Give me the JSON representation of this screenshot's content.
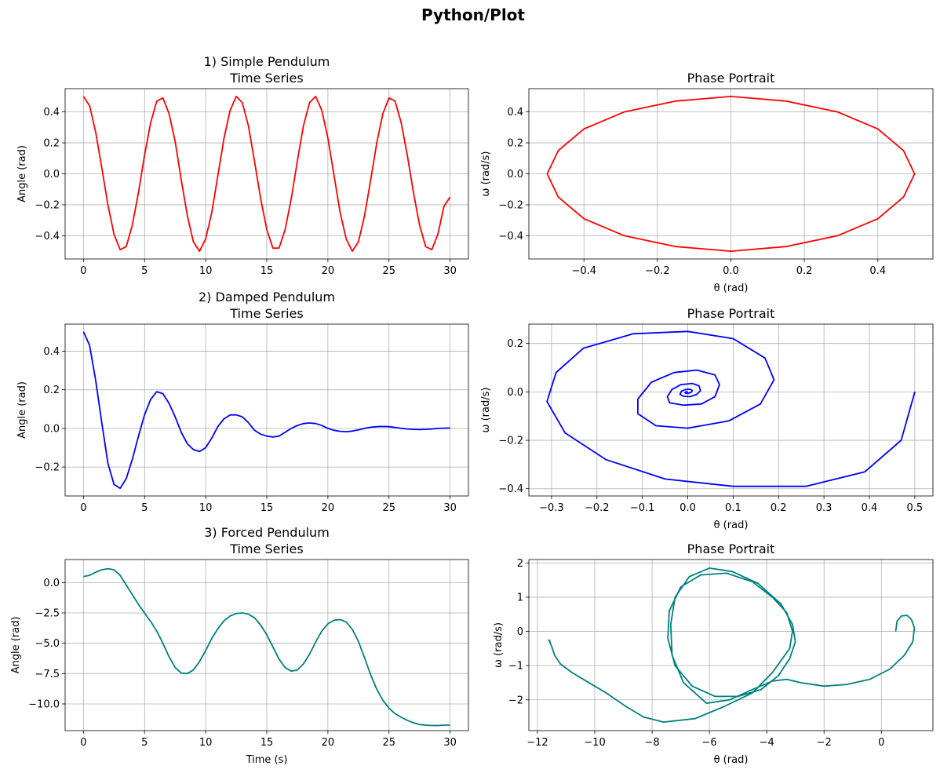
{
  "figure": {
    "suptitle": "Python/Plot"
  },
  "chart_data": [
    {
      "id": "simple-time",
      "type": "line",
      "title": [
        "1) Simple Pendulum",
        "Time Series"
      ],
      "xlabel": "",
      "ylabel": "Angle (rad)",
      "xlim": [
        -1.5,
        31.5
      ],
      "ylim": [
        -0.55,
        0.55
      ],
      "xticks": [
        0,
        5,
        10,
        15,
        20,
        25,
        30
      ],
      "yticks": [
        -0.4,
        -0.2,
        0.0,
        0.2,
        0.4
      ],
      "xtick_labels": [
        "0",
        "5",
        "10",
        "15",
        "20",
        "25",
        "30"
      ],
      "ytick_labels": [
        "−0.4",
        "−0.2",
        "0.0",
        "0.2",
        "0.4"
      ],
      "grid": true,
      "color": "#ff0000",
      "series": [
        {
          "x": [
            0,
            0.5,
            1,
            1.5,
            2,
            2.5,
            3,
            3.5,
            4,
            4.5,
            5,
            5.5,
            6,
            6.5,
            7,
            7.5,
            8,
            8.5,
            9,
            9.5,
            10,
            10.5,
            11,
            11.5,
            12,
            12.5,
            13,
            13.5,
            14,
            14.5,
            15,
            15.5,
            16,
            16.5,
            17,
            17.5,
            18,
            18.5,
            19,
            19.5,
            20,
            20.5,
            21,
            21.5,
            22,
            22.5,
            23,
            23.5,
            24,
            24.5,
            25,
            25.5,
            26,
            26.5,
            27,
            27.5,
            28,
            28.5,
            29,
            29.5,
            30
          ],
          "y": [
            0.5,
            0.44,
            0.27,
            0.04,
            -0.2,
            -0.39,
            -0.49,
            -0.47,
            -0.33,
            -0.12,
            0.12,
            0.33,
            0.47,
            0.49,
            0.39,
            0.21,
            -0.04,
            -0.27,
            -0.44,
            -0.5,
            -0.42,
            -0.25,
            -0.01,
            0.23,
            0.41,
            0.5,
            0.46,
            0.31,
            0.08,
            -0.16,
            -0.36,
            -0.48,
            -0.48,
            -0.36,
            -0.16,
            0.08,
            0.31,
            0.46,
            0.5,
            0.41,
            0.23,
            -0.01,
            -0.25,
            -0.42,
            -0.5,
            -0.44,
            -0.27,
            -0.04,
            0.2,
            0.39,
            0.49,
            0.47,
            0.33,
            0.12,
            -0.12,
            -0.33,
            -0.47,
            -0.49,
            -0.39,
            -0.21,
            -0.15
          ]
        }
      ]
    },
    {
      "id": "simple-phase",
      "type": "line",
      "title": [
        "Phase Portrait"
      ],
      "xlabel": "θ (rad)",
      "ylabel": "ω (rad/s)",
      "xlim": [
        -0.55,
        0.55
      ],
      "ylim": [
        -0.55,
        0.55
      ],
      "xticks": [
        -0.4,
        -0.2,
        0.0,
        0.2,
        0.4
      ],
      "yticks": [
        -0.4,
        -0.2,
        0.0,
        0.2,
        0.4
      ],
      "xtick_labels": [
        "−0.4",
        "−0.2",
        "0.0",
        "0.2",
        "0.4"
      ],
      "ytick_labels": [
        "−0.4",
        "−0.2",
        "0.0",
        "0.2",
        "0.4"
      ],
      "grid": true,
      "color": "#ff0000",
      "series": [
        {
          "x": [
            0.5,
            0.47,
            0.4,
            0.29,
            0.15,
            0,
            -0.15,
            -0.29,
            -0.4,
            -0.47,
            -0.5,
            -0.47,
            -0.4,
            -0.29,
            -0.15,
            0,
            0.15,
            0.29,
            0.4,
            0.47,
            0.5
          ],
          "y": [
            0,
            -0.15,
            -0.29,
            -0.4,
            -0.47,
            -0.5,
            -0.47,
            -0.4,
            -0.29,
            -0.15,
            0,
            0.15,
            0.29,
            0.4,
            0.47,
            0.5,
            0.47,
            0.4,
            0.29,
            0.15,
            0
          ]
        }
      ]
    },
    {
      "id": "damped-time",
      "type": "line",
      "title": [
        "2) Damped Pendulum",
        "Time Series"
      ],
      "xlabel": "",
      "ylabel": "Angle (rad)",
      "xlim": [
        -1.5,
        31.5
      ],
      "ylim": [
        -0.35,
        0.54
      ],
      "xticks": [
        0,
        5,
        10,
        15,
        20,
        25,
        30
      ],
      "yticks": [
        -0.2,
        0.0,
        0.2,
        0.4
      ],
      "xtick_labels": [
        "0",
        "5",
        "10",
        "15",
        "20",
        "25",
        "30"
      ],
      "ytick_labels": [
        "−0.2",
        "0.0",
        "0.2",
        "0.4"
      ],
      "grid": true,
      "color": "#0000ff",
      "series": [
        {
          "x": [
            0,
            0.5,
            1,
            1.5,
            2,
            2.5,
            3,
            3.5,
            4,
            4.5,
            5,
            5.5,
            6,
            6.5,
            7,
            7.5,
            8,
            8.5,
            9,
            9.5,
            10,
            10.5,
            11,
            11.5,
            12,
            12.5,
            13,
            13.5,
            14,
            14.5,
            15,
            15.5,
            16,
            16.5,
            17,
            17.5,
            18,
            18.5,
            19,
            19.5,
            20,
            20.5,
            21,
            21.5,
            22,
            22.5,
            23,
            23.5,
            24,
            24.5,
            25,
            25.5,
            26,
            26.5,
            27,
            27.5,
            28,
            28.5,
            29,
            29.5,
            30
          ],
          "y": [
            0.5,
            0.43,
            0.25,
            0.03,
            -0.18,
            -0.29,
            -0.31,
            -0.26,
            -0.16,
            -0.04,
            0.07,
            0.15,
            0.19,
            0.18,
            0.13,
            0.06,
            -0.02,
            -0.08,
            -0.11,
            -0.12,
            -0.1,
            -0.05,
            0.01,
            0.05,
            0.07,
            0.07,
            0.06,
            0.03,
            -0.01,
            -0.03,
            -0.04,
            -0.045,
            -0.04,
            -0.02,
            0,
            0.015,
            0.025,
            0.028,
            0.025,
            0.015,
            0,
            -0.01,
            -0.015,
            -0.017,
            -0.014,
            -0.008,
            0,
            0.006,
            0.009,
            0.01,
            0.009,
            0.005,
            0,
            -0.003,
            -0.005,
            -0.006,
            -0.005,
            -0.003,
            0,
            0.001,
            0.002
          ]
        }
      ]
    },
    {
      "id": "damped-phase",
      "type": "line",
      "title": [
        "Phase Portrait"
      ],
      "xlabel": "θ (rad)",
      "ylabel": "ω (rad/s)",
      "xlim": [
        -0.35,
        0.54
      ],
      "ylim": [
        -0.43,
        0.28
      ],
      "xticks": [
        -0.3,
        -0.2,
        -0.1,
        0.0,
        0.1,
        0.2,
        0.3,
        0.4,
        0.5
      ],
      "yticks": [
        -0.4,
        -0.2,
        0.0,
        0.2
      ],
      "xtick_labels": [
        "−0.3",
        "−0.2",
        "−0.1",
        "0.0",
        "0.1",
        "0.2",
        "0.3",
        "0.4",
        "0.5"
      ],
      "ytick_labels": [
        "−0.4",
        "−0.2",
        "0.0",
        "0.2"
      ],
      "grid": true,
      "color": "#0000ff",
      "series": [
        {
          "x": [
            0.5,
            0.47,
            0.39,
            0.26,
            0.1,
            -0.05,
            -0.18,
            -0.27,
            -0.31,
            -0.29,
            -0.23,
            -0.12,
            0,
            0.1,
            0.17,
            0.19,
            0.16,
            0.09,
            0,
            -0.07,
            -0.11,
            -0.11,
            -0.08,
            -0.03,
            0.02,
            0.06,
            0.07,
            0.06,
            0.03,
            -0.01,
            -0.04,
            -0.045,
            -0.035,
            -0.015,
            0.01,
            0.025,
            0.028,
            0.02,
            0.005,
            -0.01,
            -0.017,
            -0.014,
            -0.005,
            0.005,
            0.01,
            0.008,
            0.002,
            -0.004,
            -0.006,
            -0.004,
            0
          ],
          "y": [
            0,
            -0.2,
            -0.33,
            -0.39,
            -0.39,
            -0.36,
            -0.28,
            -0.17,
            -0.04,
            0.08,
            0.18,
            0.24,
            0.25,
            0.22,
            0.14,
            0.05,
            -0.05,
            -0.12,
            -0.15,
            -0.14,
            -0.09,
            -0.03,
            0.04,
            0.08,
            0.09,
            0.07,
            0.03,
            -0.02,
            -0.05,
            -0.055,
            -0.045,
            -0.02,
            0.01,
            0.03,
            0.035,
            0.025,
            0.005,
            -0.01,
            -0.02,
            -0.018,
            -0.01,
            0.003,
            0.01,
            0.011,
            0.006,
            -0.001,
            -0.006,
            -0.006,
            -0.003,
            0.001,
            0
          ]
        }
      ]
    },
    {
      "id": "forced-time",
      "type": "line",
      "title": [
        "3) Forced Pendulum",
        "Time Series"
      ],
      "xlabel": "Time (s)",
      "ylabel": "Angle (rad)",
      "xlim": [
        -1.5,
        31.5
      ],
      "ylim": [
        -12.2,
        1.9
      ],
      "xticks": [
        0,
        5,
        10,
        15,
        20,
        25,
        30
      ],
      "yticks": [
        -10.0,
        -7.5,
        -5.0,
        -2.5,
        0.0
      ],
      "xtick_labels": [
        "0",
        "5",
        "10",
        "15",
        "20",
        "25",
        "30"
      ],
      "ytick_labels": [
        "−10.0",
        "−7.5",
        "−5.0",
        "−2.5",
        "0.0"
      ],
      "grid": true,
      "color": "#008080",
      "series": [
        {
          "x": [
            0,
            0.5,
            1,
            1.5,
            2,
            2.5,
            3,
            3.5,
            4,
            4.5,
            5,
            5.5,
            6,
            6.5,
            7,
            7.5,
            8,
            8.5,
            9,
            9.5,
            10,
            10.5,
            11,
            11.5,
            12,
            12.5,
            13,
            13.5,
            14,
            14.5,
            15,
            15.5,
            16,
            16.5,
            17,
            17.5,
            18,
            18.5,
            19,
            19.5,
            20,
            20.5,
            21,
            21.5,
            22,
            22.5,
            23,
            23.5,
            24,
            24.5,
            25,
            25.5,
            26,
            26.5,
            27,
            27.5,
            28,
            28.5,
            29,
            29.5,
            30
          ],
          "y": [
            0.5,
            0.6,
            0.85,
            1.05,
            1.15,
            1.05,
            0.6,
            -0.2,
            -1.0,
            -1.8,
            -2.5,
            -3.2,
            -4.0,
            -5.0,
            -6.1,
            -7.0,
            -7.45,
            -7.5,
            -7.2,
            -6.5,
            -5.6,
            -4.6,
            -3.8,
            -3.15,
            -2.75,
            -2.55,
            -2.5,
            -2.6,
            -2.9,
            -3.5,
            -4.3,
            -5.3,
            -6.3,
            -7.0,
            -7.3,
            -7.2,
            -6.7,
            -5.9,
            -4.9,
            -4.0,
            -3.4,
            -3.1,
            -3.05,
            -3.25,
            -3.85,
            -4.85,
            -6.2,
            -7.6,
            -8.8,
            -9.7,
            -10.35,
            -10.8,
            -11.1,
            -11.35,
            -11.55,
            -11.7,
            -11.75,
            -11.78,
            -11.78,
            -11.75,
            -11.75
          ]
        }
      ]
    },
    {
      "id": "forced-phase",
      "type": "line",
      "title": [
        "Phase Portrait"
      ],
      "xlabel": "θ (rad)",
      "ylabel": "ω (rad/s)",
      "xlim": [
        -12.3,
        1.8
      ],
      "ylim": [
        -2.9,
        2.1
      ],
      "xticks": [
        -12,
        -10,
        -8,
        -6,
        -4,
        -2,
        0
      ],
      "yticks": [
        -2,
        -1,
        0,
        1,
        2
      ],
      "xtick_labels": [
        "−12",
        "−10",
        "−8",
        "−6",
        "−4",
        "−2",
        "0"
      ],
      "ytick_labels": [
        "−2",
        "−1",
        "0",
        "1",
        "2"
      ],
      "grid": true,
      "color": "#008080",
      "series": [
        {
          "x": [
            0.5,
            0.55,
            0.7,
            0.9,
            1.05,
            1.15,
            1.1,
            0.8,
            0.3,
            -0.4,
            -1.2,
            -2.0,
            -2.8,
            -3.3,
            -3.8,
            -4.5,
            -5.3,
            -6.1,
            -6.9,
            -7.3,
            -7.35,
            -7.2,
            -6.7,
            -6.0,
            -5.2,
            -4.3,
            -3.5,
            -3.1,
            -3.0,
            -3.2,
            -3.6,
            -4.2,
            -5.0,
            -5.8,
            -6.6,
            -7.2,
            -7.45,
            -7.4,
            -7.0,
            -6.3,
            -5.4,
            -4.5,
            -3.8,
            -3.3,
            -3.1,
            -3.2,
            -3.8,
            -4.5,
            -5.5,
            -6.5,
            -7.6,
            -8.3,
            -8.9,
            -9.6,
            -10.3,
            -10.8,
            -11.2,
            -11.4,
            -11.5,
            -11.6,
            -11.55
          ],
          "y": [
            0,
            0.3,
            0.45,
            0.47,
            0.35,
            0.1,
            -0.3,
            -0.7,
            -1.1,
            -1.4,
            -1.55,
            -1.6,
            -1.5,
            -1.4,
            -1.45,
            -1.7,
            -2.0,
            -2.1,
            -1.5,
            -0.7,
            0.2,
            1.0,
            1.6,
            1.85,
            1.75,
            1.4,
            0.8,
            0.2,
            -0.3,
            -0.8,
            -1.3,
            -1.7,
            -1.9,
            -1.9,
            -1.6,
            -1.0,
            -0.2,
            0.6,
            1.3,
            1.65,
            1.7,
            1.45,
            1.0,
            0.55,
            0.0,
            -0.5,
            -1.2,
            -1.8,
            -2.2,
            -2.55,
            -2.65,
            -2.5,
            -2.2,
            -1.8,
            -1.45,
            -1.2,
            -0.95,
            -0.7,
            -0.45,
            -0.25,
            -0.3
          ]
        }
      ]
    }
  ]
}
